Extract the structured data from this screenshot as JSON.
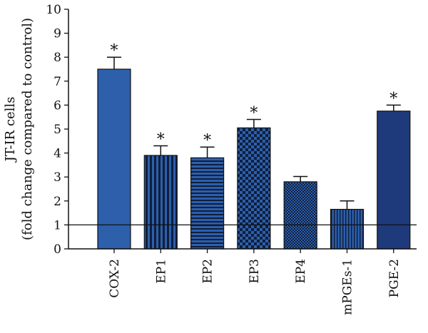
{
  "chart_data": {
    "type": "bar",
    "categories": [
      "COX-2",
      "EP1",
      "EP2",
      "EP3",
      "EP4",
      "mPGEs-1",
      "PGE-2"
    ],
    "values": [
      7.5,
      3.9,
      3.8,
      5.05,
      2.8,
      1.65,
      5.75
    ],
    "errors": [
      0.5,
      0.4,
      0.45,
      0.35,
      0.22,
      0.35,
      0.25
    ],
    "significant": [
      "*",
      "*",
      "*",
      "*",
      "",
      "",
      "*"
    ],
    "patterns": [
      "solid",
      "vertical-stripes",
      "horizontal-stripes",
      "checker-large",
      "checker-small",
      "vertical-stripes-dense",
      "solid-dark"
    ],
    "title": "",
    "xlabel": "",
    "ylabel_line1": "JT-IR cells",
    "ylabel_line2": "(fold change compared to control)",
    "ylim": [
      0,
      10
    ],
    "yticks": [
      "0",
      "1",
      "2",
      "3",
      "4",
      "5",
      "6",
      "7",
      "8",
      "9",
      "10"
    ],
    "reference_line": 1,
    "grid": false,
    "colors": {
      "bar": "#2d5fab",
      "bar_dark": "#1f3a7a",
      "stripe": "#0f1f3d",
      "axis": "#111111"
    }
  }
}
